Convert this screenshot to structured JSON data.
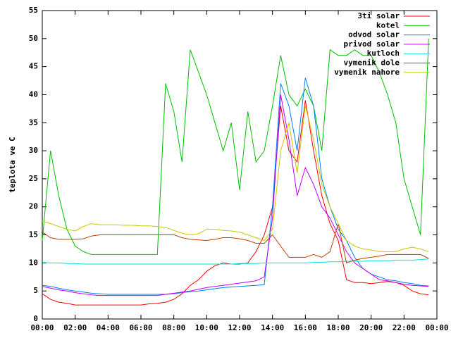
{
  "chart_data": {
    "type": "line",
    "y_label": "teplota ve C",
    "x": [
      0,
      0.5,
      1,
      1.5,
      2,
      2.5,
      3,
      3.5,
      4,
      4.5,
      5,
      5.5,
      6,
      6.5,
      7,
      7.5,
      8,
      8.5,
      9,
      9.5,
      10,
      10.5,
      11,
      11.5,
      12,
      12.5,
      13,
      13.5,
      14,
      14.5,
      15,
      15.5,
      16,
      16.5,
      17,
      17.5,
      18,
      18.5,
      19,
      19.5,
      20,
      20.5,
      21,
      21.5,
      22,
      22.5,
      23,
      23.5
    ],
    "xlim": [
      0,
      24
    ],
    "xticks": [
      {
        "value": 0,
        "label": "00:00"
      },
      {
        "value": 2,
        "label": "02:00"
      },
      {
        "value": 4,
        "label": "04:00"
      },
      {
        "value": 6,
        "label": "06:00"
      },
      {
        "value": 8,
        "label": "08:00"
      },
      {
        "value": 10,
        "label": "10:00"
      },
      {
        "value": 12,
        "label": "12:00"
      },
      {
        "value": 14,
        "label": "14:00"
      },
      {
        "value": 16,
        "label": "16:00"
      },
      {
        "value": 18,
        "label": "18:00"
      },
      {
        "value": 20,
        "label": "20:00"
      },
      {
        "value": 22,
        "label": "22:00"
      },
      {
        "value": 24,
        "label": "00:00"
      }
    ],
    "ylim": [
      0,
      55
    ],
    "yticks": [
      0,
      5,
      10,
      15,
      20,
      25,
      30,
      35,
      40,
      45,
      50,
      55
    ],
    "legend": "top-right",
    "series": [
      {
        "name": "3ti solar",
        "color": "#ff0000",
        "values": [
          4.5,
          3.5,
          3,
          2.8,
          2.5,
          2.5,
          2.5,
          2.5,
          2.5,
          2.5,
          2.5,
          2.5,
          2.5,
          2.7,
          2.8,
          3,
          3.5,
          4.5,
          6,
          7,
          8.5,
          9.5,
          10,
          9.8,
          9.8,
          10,
          12,
          15,
          20,
          38,
          30,
          28,
          39,
          30,
          22,
          17,
          14,
          7,
          6.5,
          6.5,
          6.3,
          6.5,
          6.7,
          6.5,
          6,
          5,
          4.5,
          4.3
        ]
      },
      {
        "name": "kotel",
        "color": "#00c000",
        "values": [
          14,
          30,
          22,
          16,
          13,
          12,
          11.5,
          11.5,
          11.5,
          11.5,
          11.5,
          11.5,
          11.5,
          11.5,
          11.5,
          42,
          37,
          28,
          48,
          44,
          40,
          35,
          30,
          35,
          23,
          37,
          28,
          30,
          38,
          47,
          40,
          38,
          41,
          38,
          30,
          48,
          47,
          47,
          48,
          47,
          47,
          44,
          40,
          35,
          25,
          20,
          15,
          50
        ]
      },
      {
        "name": "odvod solar",
        "color": "#0080ff",
        "values": [
          6,
          5.8,
          5.5,
          5.2,
          5,
          4.8,
          4.6,
          4.5,
          4.4,
          4.4,
          4.4,
          4.4,
          4.4,
          4.4,
          4.4,
          4.4,
          4.5,
          4.7,
          4.9,
          5,
          5.2,
          5.4,
          5.6,
          5.7,
          5.8,
          5.9,
          6,
          6.1,
          20,
          42,
          38,
          30,
          43,
          38,
          25,
          20,
          16,
          14,
          11,
          9,
          8,
          7.5,
          7,
          6.8,
          6.5,
          6.3,
          6,
          5.9
        ]
      },
      {
        "name": "privod solar",
        "color": "#c000ff",
        "values": [
          5.8,
          5.5,
          5.2,
          5,
          4.7,
          4.5,
          4.3,
          4.2,
          4.2,
          4.2,
          4.2,
          4.2,
          4.2,
          4.2,
          4.2,
          4.4,
          4.6,
          4.8,
          5,
          5.3,
          5.6,
          5.8,
          6,
          6.2,
          6.4,
          6.6,
          6.8,
          7.5,
          18,
          40,
          32,
          22,
          27,
          24,
          20,
          18,
          15,
          12,
          10,
          9,
          8,
          7,
          6.8,
          6.5,
          6.2,
          6,
          5.9,
          5.8
        ]
      },
      {
        "name": "kutloch",
        "color": "#00e0e0",
        "values": [
          10.1,
          10,
          10,
          9.9,
          9.9,
          9.8,
          9.8,
          9.8,
          9.8,
          9.8,
          9.8,
          9.8,
          9.8,
          9.8,
          9.8,
          9.8,
          9.8,
          9.8,
          9.8,
          9.8,
          9.8,
          9.8,
          9.8,
          9.8,
          9.9,
          9.9,
          9.9,
          10,
          10,
          10,
          10,
          10,
          10,
          10.1,
          10.1,
          10.2,
          10.2,
          10.3,
          10.3,
          10.3,
          10.4,
          10.4,
          10.4,
          10.5,
          10.5,
          10.5,
          10.6,
          10.7
        ]
      },
      {
        "name": "vymenik dole",
        "color": "#c04000",
        "values": [
          15.5,
          14.5,
          14.2,
          14.2,
          14.2,
          14.3,
          14.8,
          15,
          15,
          15,
          15,
          15,
          15,
          15,
          15,
          15,
          15,
          14.5,
          14.2,
          14.1,
          14,
          14.2,
          14.5,
          14.5,
          14.3,
          14,
          13.5,
          13.5,
          15,
          13,
          11,
          11,
          11,
          11.5,
          11,
          12,
          17,
          10,
          10.5,
          10.8,
          11,
          11.2,
          11.5,
          11.5,
          11.5,
          11.5,
          11.5,
          10.8
        ]
      },
      {
        "name": "vymenik nahore",
        "color": "#c8c800",
        "values": [
          17.5,
          17,
          16.5,
          16,
          15.7,
          16.5,
          17,
          16.8,
          16.8,
          16.8,
          16.7,
          16.7,
          16.6,
          16.6,
          16.5,
          16.3,
          15.8,
          15.3,
          15,
          15.2,
          16,
          16,
          15.8,
          15.7,
          15.5,
          15,
          14.5,
          14,
          16,
          30,
          35,
          26,
          38,
          32,
          24,
          20,
          17,
          14,
          13,
          12.5,
          12.3,
          12,
          12,
          12,
          12.5,
          12.8,
          12.5,
          12
        ]
      }
    ]
  }
}
